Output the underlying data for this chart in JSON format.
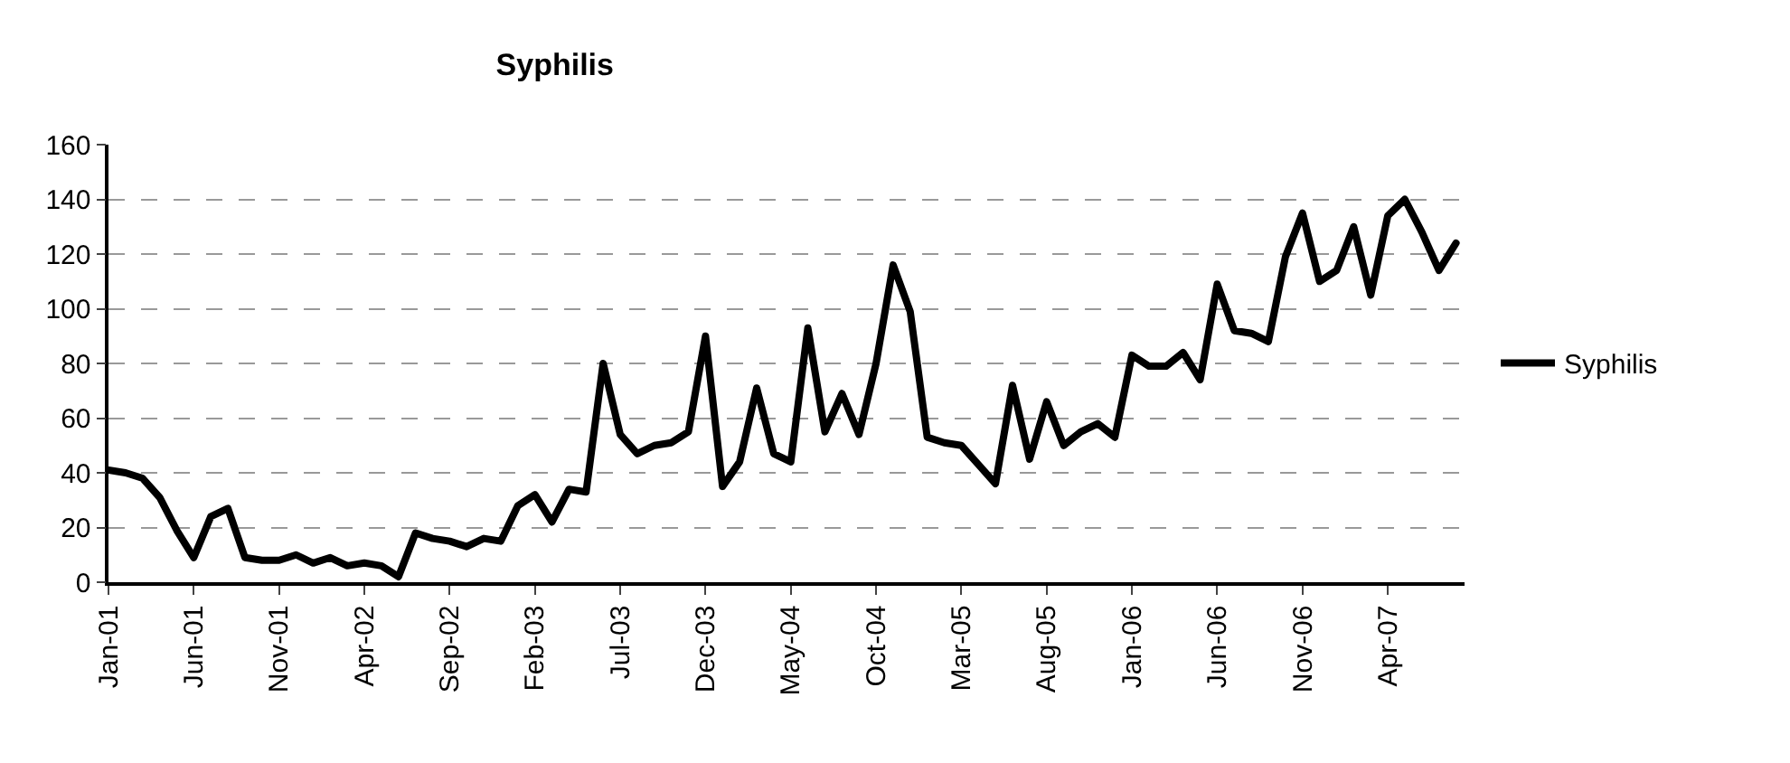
{
  "chart_data": {
    "type": "line",
    "title": "Syphilis",
    "categories": [
      "Jan-01",
      null,
      null,
      null,
      null,
      "Jun-01",
      null,
      null,
      null,
      null,
      "Nov-01",
      null,
      null,
      null,
      null,
      "Apr-02",
      null,
      null,
      null,
      null,
      "Sep-02",
      null,
      null,
      null,
      null,
      "Feb-03",
      null,
      null,
      null,
      null,
      "Jul-03",
      null,
      null,
      null,
      null,
      "Dec-03",
      null,
      null,
      null,
      null,
      "May-04",
      null,
      null,
      null,
      null,
      "Oct-04",
      null,
      null,
      null,
      null,
      "Mar-05",
      null,
      null,
      null,
      null,
      "Aug-05",
      null,
      null,
      null,
      null,
      "Jan-06",
      null,
      null,
      null,
      null,
      "Jun-06",
      null,
      null,
      null,
      null,
      "Nov-06",
      null,
      null,
      null,
      null,
      "Apr-07",
      null,
      null,
      null,
      null
    ],
    "series": [
      {
        "name": "Syphilis",
        "color": "#000000",
        "values": [
          41,
          40,
          38,
          31,
          19,
          9,
          24,
          27,
          9,
          8,
          8,
          10,
          7,
          9,
          6,
          7,
          6,
          2,
          18,
          16,
          15,
          13,
          16,
          15,
          28,
          32,
          22,
          34,
          33,
          80,
          54,
          47,
          50,
          51,
          55,
          90,
          35,
          44,
          71,
          47,
          44,
          93,
          55,
          69,
          54,
          80,
          116,
          99,
          53,
          51,
          50,
          43,
          36,
          72,
          45,
          66,
          50,
          55,
          58,
          53,
          83,
          79,
          79,
          84,
          74,
          109,
          92,
          91,
          88,
          119,
          135,
          110,
          114,
          130,
          105,
          134,
          140,
          128,
          114,
          124
        ]
      }
    ],
    "ylim": [
      0,
      160
    ],
    "yticks": [
      0,
      20,
      40,
      60,
      80,
      100,
      120,
      140,
      160
    ],
    "grid": "y",
    "legend": "right",
    "marker": "none",
    "line_style": "solid"
  }
}
